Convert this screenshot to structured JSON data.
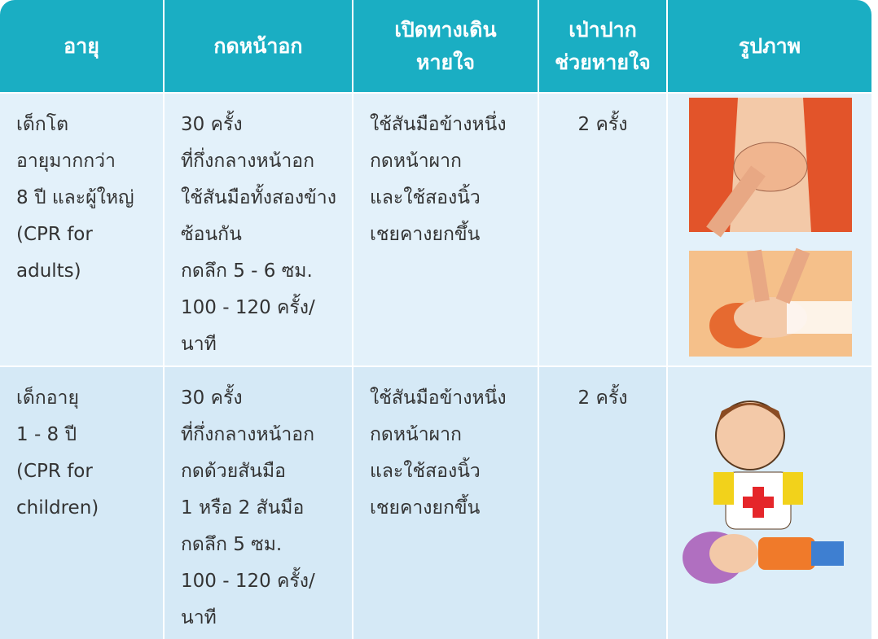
{
  "table": {
    "header": [
      [
        "อายุ"
      ],
      [
        "กดหน้าอก"
      ],
      [
        "เปิดทางเดิน",
        "หายใจ"
      ],
      [
        "เป่าปาก",
        "ช่วยหายใจ"
      ],
      [
        "รูปภาพ"
      ]
    ],
    "rows": [
      [
        [
          "เด็กโต",
          "อายุมากกว่า",
          "8 ปี และผู้ใหญ่",
          "(CPR for",
          "adults)"
        ],
        [
          "30 ครั้ง",
          "ที่กึ่งกลางหน้าอก",
          "ใช้สันมือทั้งสองข้าง",
          "ซ้อนกัน",
          "กดลึก 5 - 6 ซม.",
          "100 - 120 ครั้ง/",
          "นาที"
        ],
        [
          "ใช้สันมือข้างหนึ่ง",
          "กดหน้าผาก",
          "และใช้สองนิ้ว",
          "เชยคางยกขึ้น"
        ],
        [
          "2 ครั้ง"
        ]
      ],
      [
        [
          "เด็กอายุ",
          "1 - 8 ปี",
          "(CPR for",
          "children)"
        ],
        [
          "30 ครั้ง",
          "ที่กึ่งกลางหน้าอก",
          "กดด้วยสันมือ",
          "1 หรือ 2 สันมือ",
          "กดลึก 5 ซม.",
          "100 - 120 ครั้ง/",
          "นาที"
        ],
        [
          "ใช้สันมือข้างหนึ่ง",
          "กดหน้าผาก",
          "และใช้สองนิ้ว",
          "เชยคางยกขึ้น"
        ],
        [
          "2 ครั้ง"
        ]
      ]
    ]
  }
}
